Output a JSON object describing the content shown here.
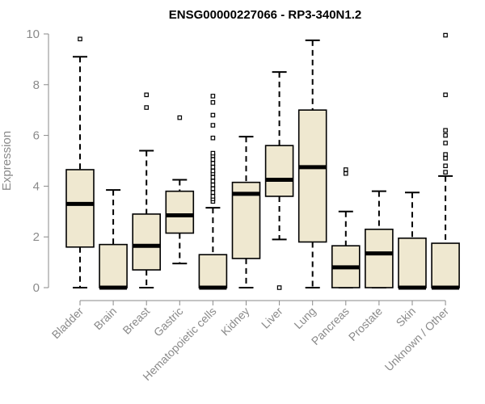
{
  "chart_data": {
    "type": "box",
    "title": "ENSG00000227066 - RP3-340N1.2",
    "xlabel": "",
    "ylabel": "Expression",
    "ylim": [
      0,
      10
    ],
    "yticks": [
      0,
      2,
      4,
      6,
      8,
      10
    ],
    "grid": false,
    "box_fill": "#efe8d0",
    "series": [
      {
        "category": "Bladder",
        "whisker_low": 0,
        "q1": 1.6,
        "median": 3.3,
        "q3": 4.65,
        "whisker_high": 9.1,
        "outliers": [
          9.8
        ]
      },
      {
        "category": "Brain",
        "whisker_low": 0,
        "q1": 0,
        "median": 0,
        "q3": 1.7,
        "whisker_high": 3.85,
        "outliers": []
      },
      {
        "category": "Breast",
        "whisker_low": 0,
        "q1": 0.7,
        "median": 1.65,
        "q3": 2.9,
        "whisker_high": 5.4,
        "outliers": [
          7.1,
          7.6
        ]
      },
      {
        "category": "Gastric",
        "whisker_low": 0.95,
        "q1": 2.15,
        "median": 2.85,
        "q3": 3.8,
        "whisker_high": 4.25,
        "outliers": [
          6.7
        ]
      },
      {
        "category": "Hematopoietic cells",
        "whisker_low": 0,
        "q1": 0,
        "median": 0,
        "q3": 1.3,
        "whisker_high": 3.15,
        "outliers": [
          3.4,
          3.5,
          3.6,
          3.75,
          3.9,
          4.05,
          4.2,
          4.35,
          4.5,
          4.6,
          4.75,
          4.9,
          5.05,
          5.2,
          5.3,
          5.9,
          6.4,
          6.8,
          7.3,
          7.55
        ]
      },
      {
        "category": "Kidney",
        "whisker_low": 0,
        "q1": 1.15,
        "median": 3.7,
        "q3": 4.15,
        "whisker_high": 5.95,
        "outliers": []
      },
      {
        "category": "Liver",
        "whisker_low": 1.9,
        "q1": 3.6,
        "median": 4.25,
        "q3": 5.6,
        "whisker_high": 8.5,
        "outliers": [
          0
        ]
      },
      {
        "category": "Lung",
        "whisker_low": 0,
        "q1": 1.8,
        "median": 4.75,
        "q3": 7.0,
        "whisker_high": 9.75,
        "outliers": []
      },
      {
        "category": "Pancreas",
        "whisker_low": 0,
        "q1": 0,
        "median": 0.8,
        "q3": 1.65,
        "whisker_high": 3.0,
        "outliers": [
          4.5,
          4.65
        ]
      },
      {
        "category": "Prostate",
        "whisker_low": 0,
        "q1": 0,
        "median": 1.35,
        "q3": 2.3,
        "whisker_high": 3.8,
        "outliers": []
      },
      {
        "category": "Skin",
        "whisker_low": 0,
        "q1": 0,
        "median": 0,
        "q3": 1.95,
        "whisker_high": 3.75,
        "outliers": []
      },
      {
        "category": "Unknown / Other",
        "whisker_low": 0,
        "q1": 0,
        "median": 0,
        "q3": 1.75,
        "whisker_high": 4.4,
        "outliers": [
          4.55,
          4.8,
          5.1,
          5.25,
          5.7,
          6.0,
          6.2,
          7.6,
          9.95
        ]
      }
    ]
  }
}
